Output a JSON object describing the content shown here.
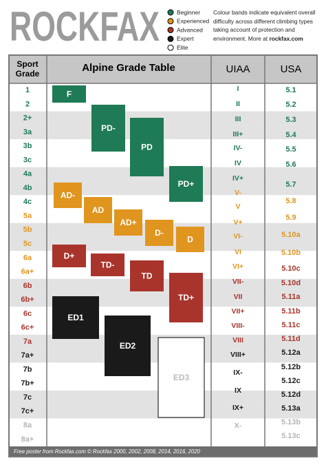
{
  "header": {
    "logo": "ROCKFAX",
    "legend": [
      {
        "label": "Beginner",
        "color": "#1f7a56"
      },
      {
        "label": "Experienced",
        "color": "#e0951f"
      },
      {
        "label": "Advanced",
        "color": "#a9342c"
      },
      {
        "label": "Expert",
        "color": "#1a1a1a"
      },
      {
        "label": "Elite",
        "color": "#ffffff"
      }
    ],
    "note": {
      "text": "Colour bands indicate equivalent overall difficulty across different climbing types taking account of protection and environment. More at",
      "link": "rockfax.com"
    }
  },
  "table": {
    "headers": {
      "sport": [
        "Sport",
        "Grade"
      ],
      "alpine": "Alpine Grade Table",
      "uiaa": "UIAA",
      "usa": "USA"
    },
    "sport": [
      {
        "label": "1",
        "color": "#1f7a56"
      },
      {
        "label": "2",
        "color": "#1f7a56"
      },
      {
        "label": "2+",
        "color": "#1f7a56"
      },
      {
        "label": "3a",
        "color": "#1f7a56"
      },
      {
        "label": "3b",
        "color": "#1f7a56"
      },
      {
        "label": "3c",
        "color": "#1f7a56"
      },
      {
        "label": "4a",
        "color": "#1f7a56"
      },
      {
        "label": "4b",
        "color": "#1f7a56"
      },
      {
        "label": "4c",
        "color": "#1f7a56"
      },
      {
        "label": "5a",
        "color": "#e0951f"
      },
      {
        "label": "5b",
        "color": "#e0951f"
      },
      {
        "label": "5c",
        "color": "#e0951f"
      },
      {
        "label": "6a",
        "color": "#e0951f"
      },
      {
        "label": "6a+",
        "color": "#e0951f"
      },
      {
        "label": "6b",
        "color": "#a9342c"
      },
      {
        "label": "6b+",
        "color": "#a9342c"
      },
      {
        "label": "6c",
        "color": "#a9342c"
      },
      {
        "label": "6c+",
        "color": "#a9342c"
      },
      {
        "label": "7a",
        "color": "#a9342c"
      },
      {
        "label": "7a+",
        "color": "#1a1a1a"
      },
      {
        "label": "7b",
        "color": "#1a1a1a"
      },
      {
        "label": "7b+",
        "color": "#1a1a1a"
      },
      {
        "label": "7c",
        "color": "#1a1a1a"
      },
      {
        "label": "7c+",
        "color": "#1a1a1a"
      },
      {
        "label": "8a",
        "color": "#b5b5b5"
      },
      {
        "label": "8a+",
        "color": "#b5b5b5"
      }
    ],
    "alpine": [
      {
        "label": "F",
        "color": "#1f7a56"
      },
      {
        "label": "PD-",
        "color": "#1f7a56"
      },
      {
        "label": "PD",
        "color": "#1f7a56"
      },
      {
        "label": "PD+",
        "color": "#1f7a56"
      },
      {
        "label": "AD-",
        "color": "#e0951f"
      },
      {
        "label": "AD",
        "color": "#e0951f"
      },
      {
        "label": "AD+",
        "color": "#e0951f"
      },
      {
        "label": "D-",
        "color": "#e0951f"
      },
      {
        "label": "D",
        "color": "#e0951f"
      },
      {
        "label": "D+",
        "color": "#a9342c"
      },
      {
        "label": "TD-",
        "color": "#a9342c"
      },
      {
        "label": "TD",
        "color": "#a9342c"
      },
      {
        "label": "TD+",
        "color": "#a9342c"
      },
      {
        "label": "ED1",
        "color": "#1a1a1a"
      },
      {
        "label": "ED2",
        "color": "#1a1a1a"
      },
      {
        "label": "ED3",
        "color": "#ffffff"
      }
    ],
    "uiaa": [
      {
        "label": "I",
        "color": "#1f7a56"
      },
      {
        "label": "II",
        "color": "#1f7a56"
      },
      {
        "label": "III",
        "color": "#1f7a56"
      },
      {
        "label": "III+",
        "color": "#1f7a56"
      },
      {
        "label": "IV-",
        "color": "#1f7a56"
      },
      {
        "label": "IV",
        "color": "#1f7a56"
      },
      {
        "label": "IV+",
        "color": "#1f7a56"
      },
      {
        "label": "V-",
        "color": "#e0951f"
      },
      {
        "label": "V",
        "color": "#e0951f"
      },
      {
        "label": "V+",
        "color": "#e0951f"
      },
      {
        "label": "VI-",
        "color": "#e0951f"
      },
      {
        "label": "VI",
        "color": "#e0951f"
      },
      {
        "label": "VI+",
        "color": "#e0951f"
      },
      {
        "label": "VII-",
        "color": "#a9342c"
      },
      {
        "label": "VII",
        "color": "#a9342c"
      },
      {
        "label": "VII+",
        "color": "#a9342c"
      },
      {
        "label": "VIII-",
        "color": "#a9342c"
      },
      {
        "label": "VIII",
        "color": "#a9342c"
      },
      {
        "label": "VIII+",
        "color": "#1a1a1a"
      },
      {
        "label": "IX-",
        "color": "#1a1a1a"
      },
      {
        "label": "IX",
        "color": "#1a1a1a"
      },
      {
        "label": "IX+",
        "color": "#1a1a1a"
      },
      {
        "label": "X-",
        "color": "#b5b5b5"
      }
    ],
    "usa": [
      {
        "label": "5.1",
        "color": "#1f7a56"
      },
      {
        "label": "5.2",
        "color": "#1f7a56"
      },
      {
        "label": "5.3",
        "color": "#1f7a56"
      },
      {
        "label": "5.4",
        "color": "#1f7a56"
      },
      {
        "label": "5.5",
        "color": "#1f7a56"
      },
      {
        "label": "5.6",
        "color": "#1f7a56"
      },
      {
        "label": "5.7",
        "color": "#1f7a56"
      },
      {
        "label": "5.8",
        "color": "#e0951f"
      },
      {
        "label": "5.9",
        "color": "#e0951f"
      },
      {
        "label": "5.10a",
        "color": "#e0951f"
      },
      {
        "label": "5.10b",
        "color": "#e0951f"
      },
      {
        "label": "5.10c",
        "color": "#a9342c"
      },
      {
        "label": "5.10d",
        "color": "#a9342c"
      },
      {
        "label": "5.11a",
        "color": "#a9342c"
      },
      {
        "label": "5.11b",
        "color": "#a9342c"
      },
      {
        "label": "5.11c",
        "color": "#a9342c"
      },
      {
        "label": "5.11d",
        "color": "#a9342c"
      },
      {
        "label": "5.12a",
        "color": "#1a1a1a"
      },
      {
        "label": "5.12b",
        "color": "#1a1a1a"
      },
      {
        "label": "5.12c",
        "color": "#1a1a1a"
      },
      {
        "label": "5.12d",
        "color": "#1a1a1a"
      },
      {
        "label": "5.13a",
        "color": "#1a1a1a"
      },
      {
        "label": "5.13b",
        "color": "#b5b5b5"
      },
      {
        "label": "5.13c",
        "color": "#b5b5b5"
      }
    ]
  },
  "footer": "Free poster from Rockfax.com © Rockfax 2000, 2002, 2008, 2014, 2016, 2020"
}
